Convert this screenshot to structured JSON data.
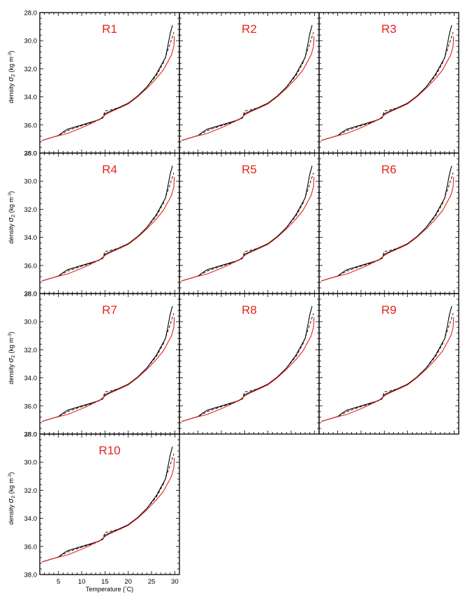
{
  "chart_data": {
    "type": "line",
    "layout": "panel grid, 3 columns x 4 rows",
    "xlabel": "Temperature (°C)",
    "ylabel": "density σ2 (kg m-3)",
    "xlim": [
      1,
      31
    ],
    "ylim": [
      38.0,
      28.0
    ],
    "y_axis_inverted": true,
    "x_ticks": [
      5,
      10,
      15,
      20,
      25,
      30
    ],
    "y_ticks": [
      "28.0",
      "30.0",
      "32.0",
      "34.0",
      "36.0",
      "38.0"
    ],
    "colors": {
      "black_series": "#000000",
      "red_series": "#e8211a",
      "title": "#e8211a"
    },
    "panels": [
      {
        "title": "R1"
      },
      {
        "title": "R2"
      },
      {
        "title": "R3"
      },
      {
        "title": "R4"
      },
      {
        "title": "R5"
      },
      {
        "title": "R6"
      },
      {
        "title": "R7"
      },
      {
        "title": "R8"
      },
      {
        "title": "R9"
      },
      {
        "title": "R10"
      }
    ],
    "series": [
      {
        "style": "solid-black",
        "x": [
          1.5,
          3,
          5,
          6,
          7,
          9,
          11,
          13,
          14.5,
          15,
          16,
          17,
          18,
          20,
          22,
          24,
          26,
          27,
          28,
          28.5,
          29,
          29.5
        ],
        "y": [
          37.1,
          36.95,
          36.75,
          36.5,
          36.3,
          36.1,
          35.9,
          35.7,
          35.5,
          35.2,
          35.05,
          34.9,
          34.75,
          34.45,
          33.95,
          33.3,
          32.4,
          31.8,
          31.2,
          30.4,
          29.5,
          28.9
        ]
      },
      {
        "style": "dashed-black",
        "x": [
          1.5,
          3,
          5,
          7,
          10,
          13,
          14.5,
          15,
          16,
          17,
          18.5,
          20,
          22,
          24,
          26,
          27.5,
          28.5,
          29.3,
          29.8
        ],
        "y": [
          37.1,
          36.95,
          36.75,
          36.4,
          36.05,
          35.75,
          35.5,
          35.0,
          34.95,
          34.85,
          34.75,
          34.45,
          33.95,
          33.3,
          32.5,
          31.6,
          30.7,
          29.9,
          29.4
        ]
      },
      {
        "style": "solid-red",
        "x": [
          1.5,
          4,
          7,
          10,
          12,
          14,
          15,
          16,
          17,
          18,
          20,
          22,
          24,
          26,
          27.5,
          28.5,
          29.3,
          29.8,
          29.9
        ],
        "y": [
          37.1,
          36.85,
          36.6,
          36.2,
          35.9,
          35.55,
          35.3,
          35.1,
          34.95,
          34.8,
          34.5,
          34.0,
          33.4,
          32.7,
          32.1,
          31.5,
          31.0,
          30.4,
          29.7
        ]
      }
    ]
  }
}
